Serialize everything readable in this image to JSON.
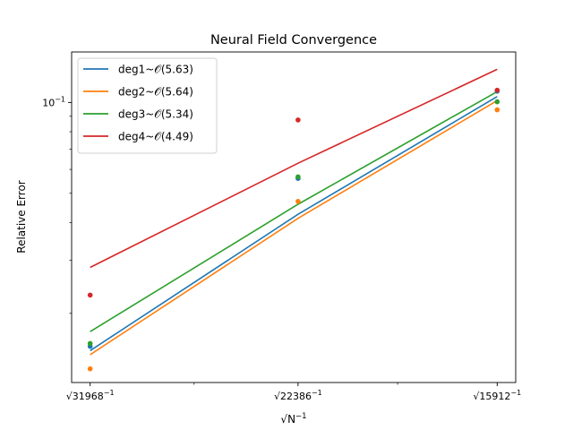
{
  "chart_data": {
    "type": "line",
    "title": "Neural Field Convergence",
    "ylabel": "Relative Error",
    "xlabel": {
      "base": "√N",
      "exponent": "−1"
    },
    "x": [
      31968,
      22386,
      15912
    ],
    "x_tick_labels": [
      {
        "base": "√31968",
        "exponent": "−1"
      },
      {
        "base": "√22386",
        "exponent": "−1"
      },
      {
        "base": "√15912",
        "exponent": "−1"
      }
    ],
    "y_scale": "log",
    "y_ticks": [
      {
        "value": 0.1,
        "base": "10",
        "exponent": "−1"
      }
    ],
    "ylim": [
      0.0118,
      0.147
    ],
    "grid": false,
    "legend_position": "top-left",
    "series": [
      {
        "name": "deg1~𝒪(5.63)",
        "color": "#1f77b4",
        "fit": [
          0.01505,
          0.0426,
          0.1046
        ],
        "points": [
          0.01555,
          0.056,
          0.109
        ]
      },
      {
        "name": "deg2~𝒪(5.64)",
        "color": "#ff7f0e",
        "fit": [
          0.0146,
          0.0413,
          0.1014
        ],
        "points": [
          0.0131,
          0.047,
          0.0945
        ]
      },
      {
        "name": "deg3~𝒪(5.34)",
        "color": "#2ca02c",
        "fit": [
          0.0174,
          0.046,
          0.1086
        ],
        "points": [
          0.0159,
          0.0567,
          0.1005
        ]
      },
      {
        "name": "deg4~𝒪(4.49)",
        "color": "#d62728",
        "fit": [
          0.0284,
          0.0629,
          0.1287
        ],
        "points": [
          0.023,
          0.0875,
          0.1098
        ]
      }
    ]
  }
}
